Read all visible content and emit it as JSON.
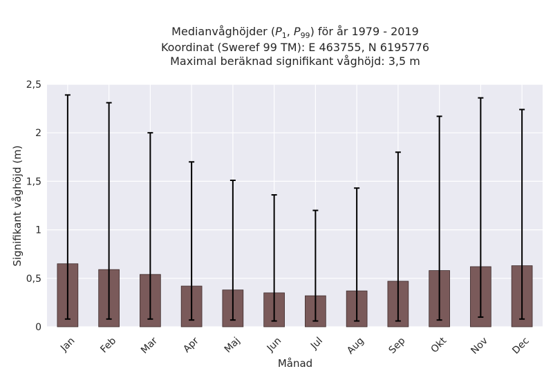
{
  "chart_data": {
    "type": "bar",
    "title_lines": [
      "Medianvåghöjder (P1, P99) för år 1979 - 2019",
      "Koordinat (Sweref 99 TM): E 463755, N 6195776",
      "Maximal beräknad signifikant våghöjd: 3,5 m"
    ],
    "xlabel": "Månad",
    "ylabel": "Signifikant våghöjd (m)",
    "categories": [
      "Jan",
      "Feb",
      "Mar",
      "Apr",
      "Maj",
      "Jun",
      "Jul",
      "Aug",
      "Sep",
      "Okt",
      "Nov",
      "Dec"
    ],
    "values": [
      0.65,
      0.59,
      0.54,
      0.42,
      0.38,
      0.35,
      0.32,
      0.37,
      0.47,
      0.58,
      0.62,
      0.63
    ],
    "p1": [
      0.08,
      0.08,
      0.08,
      0.07,
      0.07,
      0.06,
      0.06,
      0.06,
      0.06,
      0.07,
      0.1,
      0.08
    ],
    "p99": [
      2.39,
      2.31,
      2.0,
      1.7,
      1.51,
      1.36,
      1.2,
      1.43,
      1.8,
      2.17,
      2.36,
      2.24
    ],
    "ylim": [
      0,
      2.5
    ],
    "yticks": [
      0,
      0.5,
      1,
      1.5,
      2,
      2.5
    ],
    "ytick_labels": [
      "0",
      "0,5",
      "1",
      "1,5",
      "2",
      "2,5"
    ],
    "grid": true,
    "colors": {
      "bar_fill": "#7a5a5a",
      "bar_edge": "#3d2b2b",
      "error_bar": "#000000",
      "plot_background": "#eaeaf2",
      "grid": "#ffffff"
    }
  }
}
